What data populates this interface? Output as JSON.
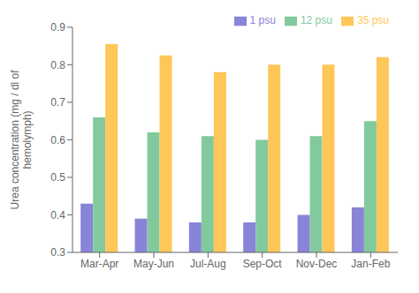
{
  "chart_data": {
    "type": "bar",
    "categories": [
      "Mar-Apr",
      "May-Jun",
      "Jul-Aug",
      "Sep-Oct",
      "Nov-Dec",
      "Jan-Feb"
    ],
    "series": [
      {
        "name": "1 psu",
        "values": [
          0.43,
          0.39,
          0.38,
          0.38,
          0.4,
          0.42
        ]
      },
      {
        "name": "12 psu",
        "values": [
          0.66,
          0.62,
          0.61,
          0.6,
          0.61,
          0.65
        ]
      },
      {
        "name": "35 psu",
        "values": [
          0.855,
          0.825,
          0.78,
          0.8,
          0.8,
          0.82
        ]
      }
    ],
    "ylabel": "Urea concentration (mg / dl of\nhemolymph)",
    "ylim": [
      0.3,
      0.9
    ],
    "yticks": [
      0.3,
      0.4,
      0.5,
      0.6,
      0.7,
      0.8,
      0.9
    ],
    "grid": false,
    "legend": "upper right"
  }
}
